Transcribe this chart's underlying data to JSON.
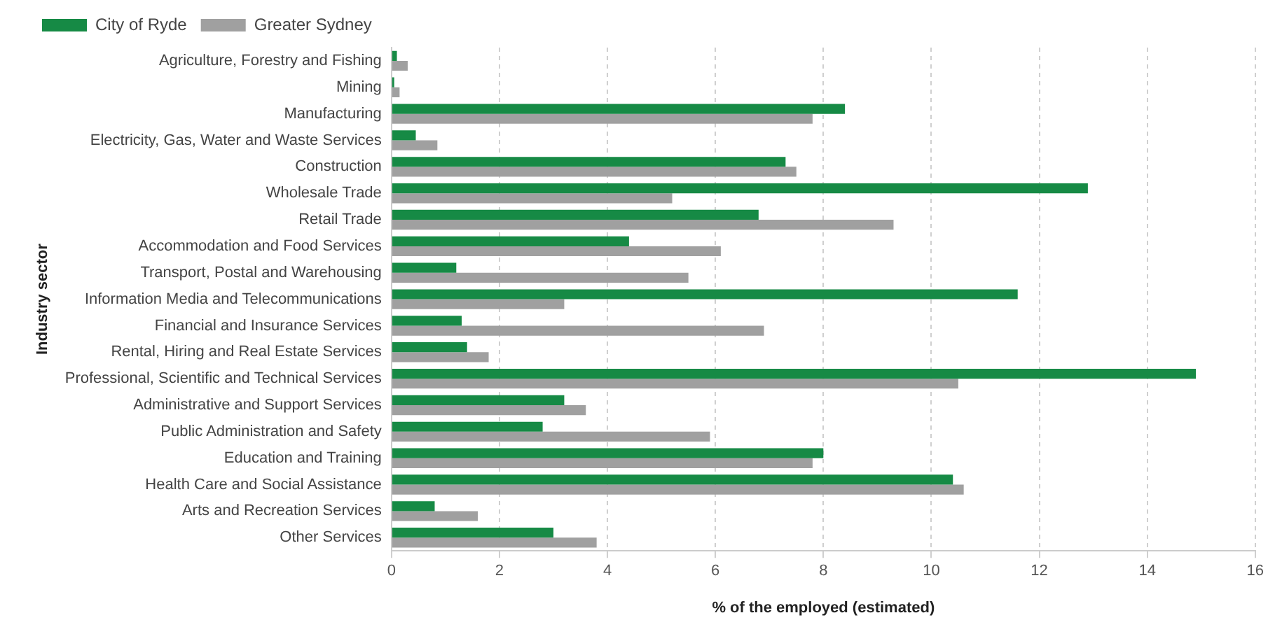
{
  "chart_data": {
    "type": "bar",
    "orientation": "horizontal",
    "xlabel": "% of the employed (estimated)",
    "ylabel": "Industry sector",
    "categories": [
      "Agriculture, Forestry and Fishing",
      "Mining",
      "Manufacturing",
      "Electricity, Gas, Water and Waste Services",
      "Construction",
      "Wholesale Trade",
      "Retail Trade",
      "Accommodation and Food Services",
      "Transport, Postal and Warehousing",
      "Information Media and Telecommunications",
      "Financial and Insurance Services",
      "Rental, Hiring and Real Estate Services",
      "Professional, Scientific and Technical Services",
      "Administrative and Support Services",
      "Public Administration and Safety",
      "Education and Training",
      "Health Care and Social Assistance",
      "Arts and Recreation Services",
      "Other Services"
    ],
    "series": [
      {
        "name": "City of Ryde",
        "color": "#168a45",
        "values": [
          0.1,
          0.05,
          8.4,
          0.45,
          7.3,
          12.9,
          6.8,
          4.4,
          1.2,
          11.6,
          1.3,
          1.4,
          14.9,
          3.2,
          2.8,
          8.0,
          10.4,
          0.8,
          3.0
        ]
      },
      {
        "name": "Greater Sydney",
        "color": "#a0a0a0",
        "values": [
          0.3,
          0.15,
          7.8,
          0.85,
          7.5,
          5.2,
          9.3,
          6.1,
          5.5,
          3.2,
          6.9,
          1.8,
          10.5,
          3.6,
          5.9,
          7.8,
          10.6,
          1.6,
          3.8
        ]
      }
    ],
    "xlim": [
      0,
      16
    ],
    "xticks": [
      0,
      2,
      4,
      6,
      8,
      10,
      12,
      14,
      16
    ],
    "grid": "x",
    "legend": "top left"
  }
}
